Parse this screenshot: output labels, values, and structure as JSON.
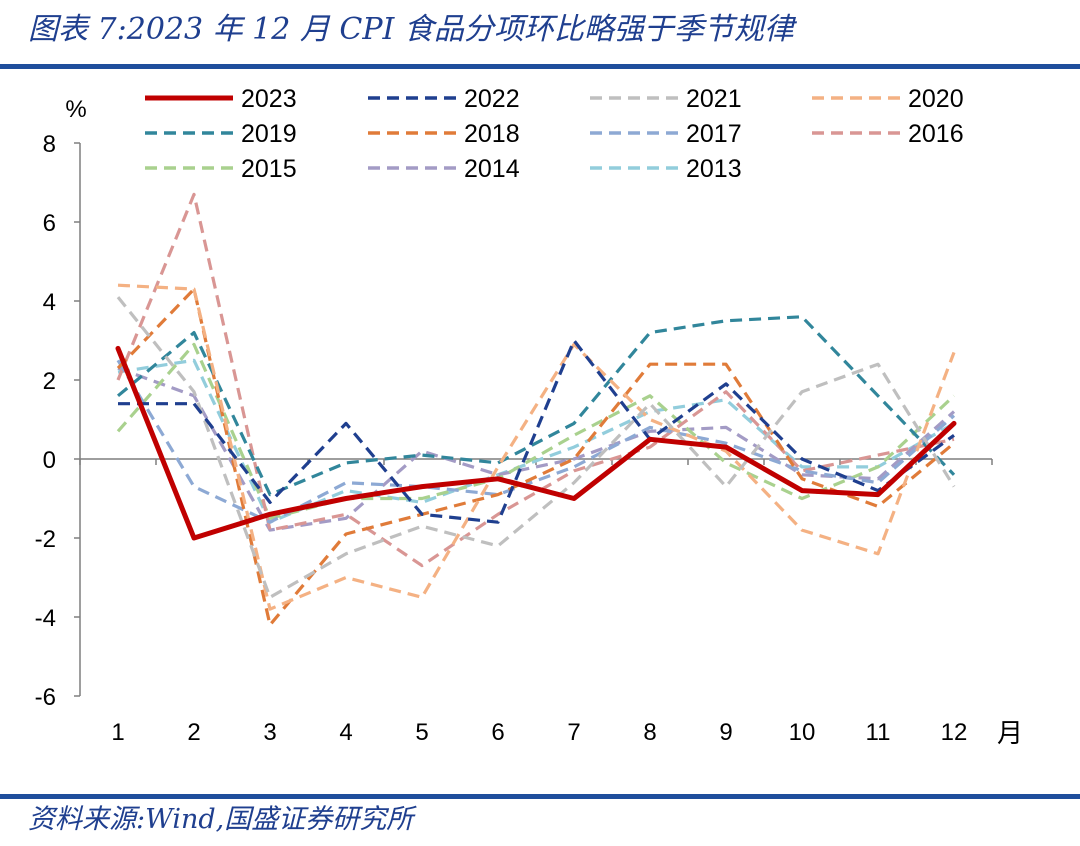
{
  "header": {
    "title": "图表 7:2023 年 12 月 CPI 食品分项环比略强于季节规律"
  },
  "footer": {
    "source": "资料来源:Wind,国盛证券研究所"
  },
  "chart_data": {
    "type": "line",
    "ylabel": "%",
    "xlabel": "月",
    "ylim": [
      -6,
      8
    ],
    "yticks": [
      -6,
      -4,
      -2,
      0,
      2,
      4,
      6,
      8
    ],
    "x": [
      1,
      2,
      3,
      4,
      5,
      6,
      7,
      8,
      9,
      10,
      11,
      12
    ],
    "grid": false,
    "legend": {
      "placement": "top",
      "columns": 4
    },
    "series": [
      {
        "name": "2023",
        "color": "#c00000",
        "dash": "solid",
        "values": [
          2.8,
          -2.0,
          -1.4,
          -1.0,
          -0.7,
          -0.5,
          -1.0,
          0.5,
          0.3,
          -0.8,
          -0.9,
          0.9
        ]
      },
      {
        "name": "2022",
        "color": "#1f3f8f",
        "dash": "dashed",
        "values": [
          1.4,
          1.4,
          -1.1,
          0.9,
          -1.4,
          -1.6,
          3.0,
          0.5,
          1.9,
          0.0,
          -0.8,
          0.6
        ]
      },
      {
        "name": "2021",
        "color": "#bfbfbf",
        "dash": "dashed",
        "values": [
          4.1,
          1.7,
          -3.5,
          -2.4,
          -1.7,
          -2.2,
          -0.6,
          1.4,
          -0.7,
          1.7,
          2.4,
          -0.7
        ]
      },
      {
        "name": "2020",
        "color": "#f4b183",
        "dash": "dashed",
        "values": [
          4.4,
          4.3,
          -3.8,
          -3.0,
          -3.5,
          -0.2,
          2.9,
          1.0,
          0.2,
          -1.8,
          -2.4,
          2.7
        ]
      },
      {
        "name": "2019",
        "color": "#31869b",
        "dash": "dashed",
        "values": [
          1.6,
          3.2,
          -0.9,
          -0.1,
          0.1,
          -0.1,
          0.9,
          3.2,
          3.5,
          3.6,
          1.6,
          -0.4
        ]
      },
      {
        "name": "2018",
        "color": "#e07b39",
        "dash": "dashed",
        "values": [
          2.3,
          4.3,
          -4.2,
          -1.9,
          -1.4,
          -0.9,
          0.0,
          2.4,
          2.4,
          -0.5,
          -1.2,
          0.4
        ]
      },
      {
        "name": "2017",
        "color": "#8da9d4",
        "dash": "dashed",
        "values": [
          2.5,
          -0.7,
          -1.6,
          -0.6,
          -0.7,
          -0.9,
          -0.2,
          0.8,
          0.4,
          -0.3,
          -0.6,
          1.1
        ]
      },
      {
        "name": "2016",
        "color": "#d99694",
        "dash": "dashed",
        "values": [
          2.0,
          6.7,
          -1.8,
          -1.4,
          -2.7,
          -1.4,
          -0.3,
          0.3,
          1.7,
          -0.3,
          0.1,
          0.5
        ]
      },
      {
        "name": "2015",
        "color": "#a9d18e",
        "dash": "dashed",
        "values": [
          0.7,
          2.9,
          -1.5,
          -1.0,
          -1.0,
          -0.5,
          0.6,
          1.6,
          -0.1,
          -1.0,
          -0.2,
          1.6
        ]
      },
      {
        "name": "2014",
        "color": "#a39bc5",
        "dash": "dashed",
        "values": [
          2.3,
          1.6,
          -1.8,
          -1.5,
          0.2,
          -0.4,
          0.0,
          0.7,
          0.8,
          -0.4,
          -0.5,
          1.2
        ]
      },
      {
        "name": "2013",
        "color": "#92cddc",
        "dash": "dashed",
        "values": [
          2.2,
          2.5,
          -1.6,
          -0.8,
          -1.1,
          -0.4,
          0.3,
          1.2,
          1.5,
          -0.2,
          -0.2,
          0.9
        ]
      }
    ]
  }
}
